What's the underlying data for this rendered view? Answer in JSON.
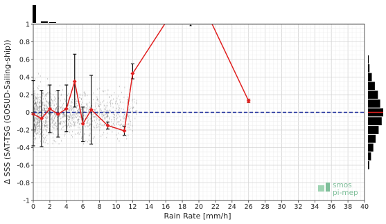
{
  "chart_data": {
    "type": "line",
    "xlabel": "Rain Rate [mm/h]",
    "ylabel": "Δ SSS (SAT-TSG (GOSUD-Sailing-ship))",
    "xlim": [
      0,
      40
    ],
    "ylim": [
      -1,
      1
    ],
    "xticks": [
      0,
      2,
      4,
      6,
      8,
      10,
      12,
      14,
      16,
      18,
      20,
      22,
      24,
      26,
      28,
      30,
      32,
      34,
      36,
      38,
      40
    ],
    "yticks": [
      -1,
      -0.8,
      -0.6,
      -0.4,
      -0.2,
      0,
      0.2,
      0.4,
      0.6,
      0.8,
      1
    ],
    "grid": true,
    "reference_line": {
      "y": 0,
      "color": "#1f2f9c",
      "style": "dashed"
    },
    "series": [
      {
        "color": "#e02020",
        "x": [
          0,
          1,
          2,
          3,
          4,
          5,
          6,
          7,
          9,
          11,
          12,
          16,
          21.5,
          26
        ],
        "y": [
          -0.02,
          -0.07,
          0.04,
          -0.02,
          0.04,
          0.35,
          -0.13,
          0.03,
          -0.15,
          -0.21,
          0.44,
          1.02,
          1.02,
          0.13
        ],
        "error_low": [
          0.36,
          0.32,
          0.27,
          0.26,
          0.26,
          0.29,
          0.2,
          0.39,
          0.04,
          0.05,
          0.06,
          null,
          null,
          0.02
        ],
        "error_high": [
          0.38,
          0.32,
          0.27,
          0.27,
          0.27,
          0.31,
          0.19,
          0.39,
          0.04,
          0.05,
          0.11,
          null,
          null,
          0.02
        ]
      }
    ],
    "scatter_background": {
      "color": "#444444",
      "description_hidden": true
    },
    "marginal_x_histogram": {
      "position": "top",
      "bins_at": [
        0,
        1,
        2
      ],
      "heights": [
        1,
        0.08,
        0.04
      ]
    },
    "marginal_y_histogram": {
      "position": "right",
      "bins": [
        0.6,
        0.5,
        0.4,
        0.3,
        0.2,
        0.1,
        0.0,
        -0.1,
        -0.2,
        -0.3,
        -0.4,
        -0.5,
        -0.6
      ],
      "heights": [
        0.05,
        0.1,
        0.25,
        0.45,
        0.65,
        0.8,
        1,
        0.9,
        0.7,
        0.5,
        0.35,
        0.2,
        0.08
      ]
    },
    "logo": {
      "line1": "smos",
      "line2": "pi-mep"
    }
  }
}
